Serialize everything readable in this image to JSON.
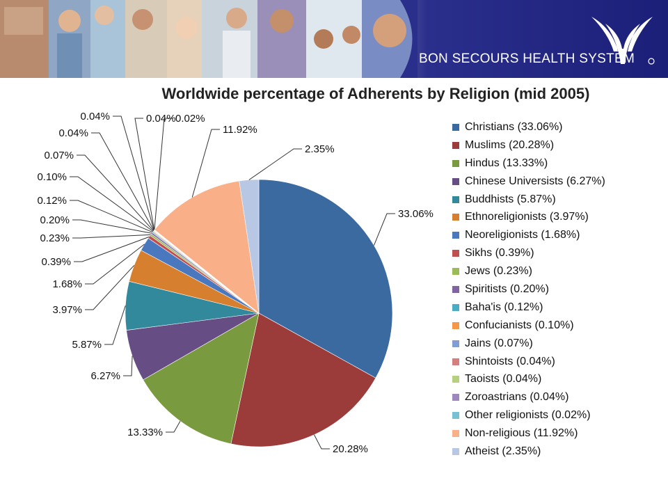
{
  "header": {
    "brand_name": "BON SECOURS HEALTH SYSTEM",
    "logo_icon": "bon-secours-logo-icon",
    "colors": {
      "banner": "#1c1f78"
    }
  },
  "chart_data": {
    "type": "pie",
    "title": "Worldwide percentage of Adherents by Religion (mid 2005)",
    "legend_position": "right",
    "slices": [
      {
        "label": "Christians (33.06%)",
        "value": 33.06,
        "data_label": "33.06%",
        "color": "#3b6aa0"
      },
      {
        "label": "Muslims (20.28%)",
        "value": 20.28,
        "data_label": "20.28%",
        "color": "#9c3c3a"
      },
      {
        "label": "Hindus (13.33%)",
        "value": 13.33,
        "data_label": "13.33%",
        "color": "#7a9a3f"
      },
      {
        "label": "Chinese Universists (6.27%)",
        "value": 6.27,
        "data_label": "6.27%",
        "color": "#664d84"
      },
      {
        "label": "Buddhists (5.87%)",
        "value": 5.87,
        "data_label": "5.87%",
        "color": "#33899c"
      },
      {
        "label": "Ethnoreligionists (3.97%)",
        "value": 3.97,
        "data_label": "3.97%",
        "color": "#d57f2f"
      },
      {
        "label": "Neoreligionists (1.68%)",
        "value": 1.68,
        "data_label": "1.68%",
        "color": "#4a78bf"
      },
      {
        "label": "Sikhs (0.39%)",
        "value": 0.39,
        "data_label": "0.39%",
        "color": "#c0504d"
      },
      {
        "label": "Jews (0.23%)",
        "value": 0.23,
        "data_label": "0.23%",
        "color": "#9bbb59"
      },
      {
        "label": "Spiritists (0.20%)",
        "value": 0.2,
        "data_label": "0.20%",
        "color": "#8064a2"
      },
      {
        "label": "Baha'is (0.12%)",
        "value": 0.12,
        "data_label": "0.12%",
        "color": "#4bacc6"
      },
      {
        "label": "Confucianists (0.10%)",
        "value": 0.1,
        "data_label": "0.10%",
        "color": "#f79646"
      },
      {
        "label": "Jains (0.07%)",
        "value": 0.07,
        "data_label": "0.07%",
        "color": "#7f9fd4"
      },
      {
        "label": "Shintoists (0.04%)",
        "value": 0.04,
        "data_label": "0.04%",
        "color": "#d47f7d"
      },
      {
        "label": "Taoists (0.04%)",
        "value": 0.04,
        "data_label": "0.04%",
        "color": "#b5d07f"
      },
      {
        "label": "Zoroastrians (0.04%)",
        "value": 0.04,
        "data_label": "0.04%",
        "color": "#9d88bd"
      },
      {
        "label": "Other religionists (0.02%)",
        "value": 0.02,
        "data_label": "0.02%",
        "color": "#78c0d4"
      },
      {
        "label": "Non-religious (11.92%)",
        "value": 11.92,
        "data_label": "11.92%",
        "color": "#f9b088"
      },
      {
        "label": "Atheist (2.35%)",
        "value": 2.35,
        "data_label": "2.35%",
        "color": "#b7c7e4"
      }
    ]
  }
}
